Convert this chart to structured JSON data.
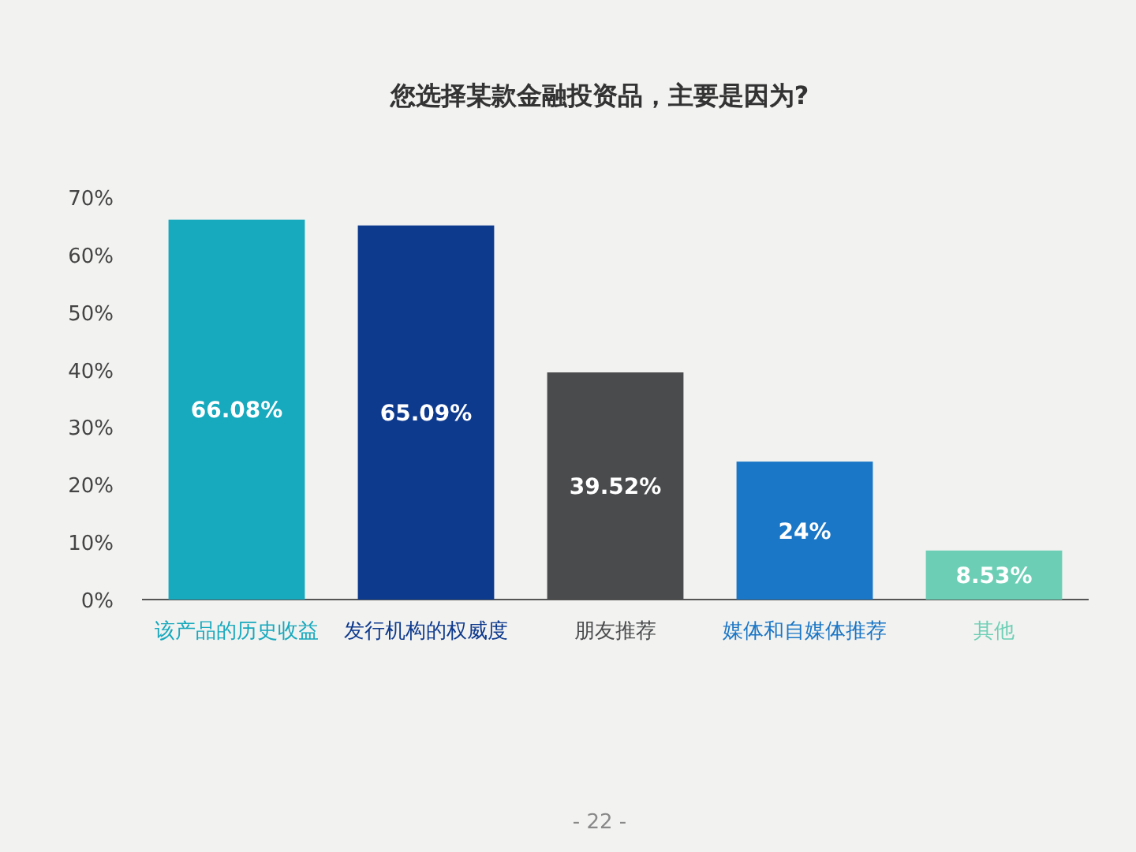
{
  "chart_data": {
    "type": "bar",
    "title": "您选择某款金融投资品，主要是因为?",
    "categories": [
      "该产品的历史收益",
      "发行机构的权威度",
      "朋友推荐",
      "媒体和自媒体推荐",
      "其他"
    ],
    "values": [
      66.08,
      65.09,
      39.52,
      24,
      8.53
    ],
    "colors": [
      "#17a9bd",
      "#0e3a8e",
      "#4a4b4d",
      "#1a76c6",
      "#6ccfb5"
    ],
    "value_labels": [
      "66.08%",
      "65.09%",
      "39.52%",
      "24%",
      "8.53%"
    ],
    "ylim": [
      0,
      70
    ],
    "yticks": [
      {
        "value": 0,
        "label": "0%"
      },
      {
        "value": 10,
        "label": "10%"
      },
      {
        "value": 20,
        "label": "20%"
      },
      {
        "value": 30,
        "label": "30%"
      },
      {
        "value": 40,
        "label": "40%"
      },
      {
        "value": 50,
        "label": "50%"
      },
      {
        "value": 60,
        "label": "60%"
      },
      {
        "value": 70,
        "label": "70%"
      }
    ],
    "annotations": [
      "- 22 -"
    ]
  }
}
